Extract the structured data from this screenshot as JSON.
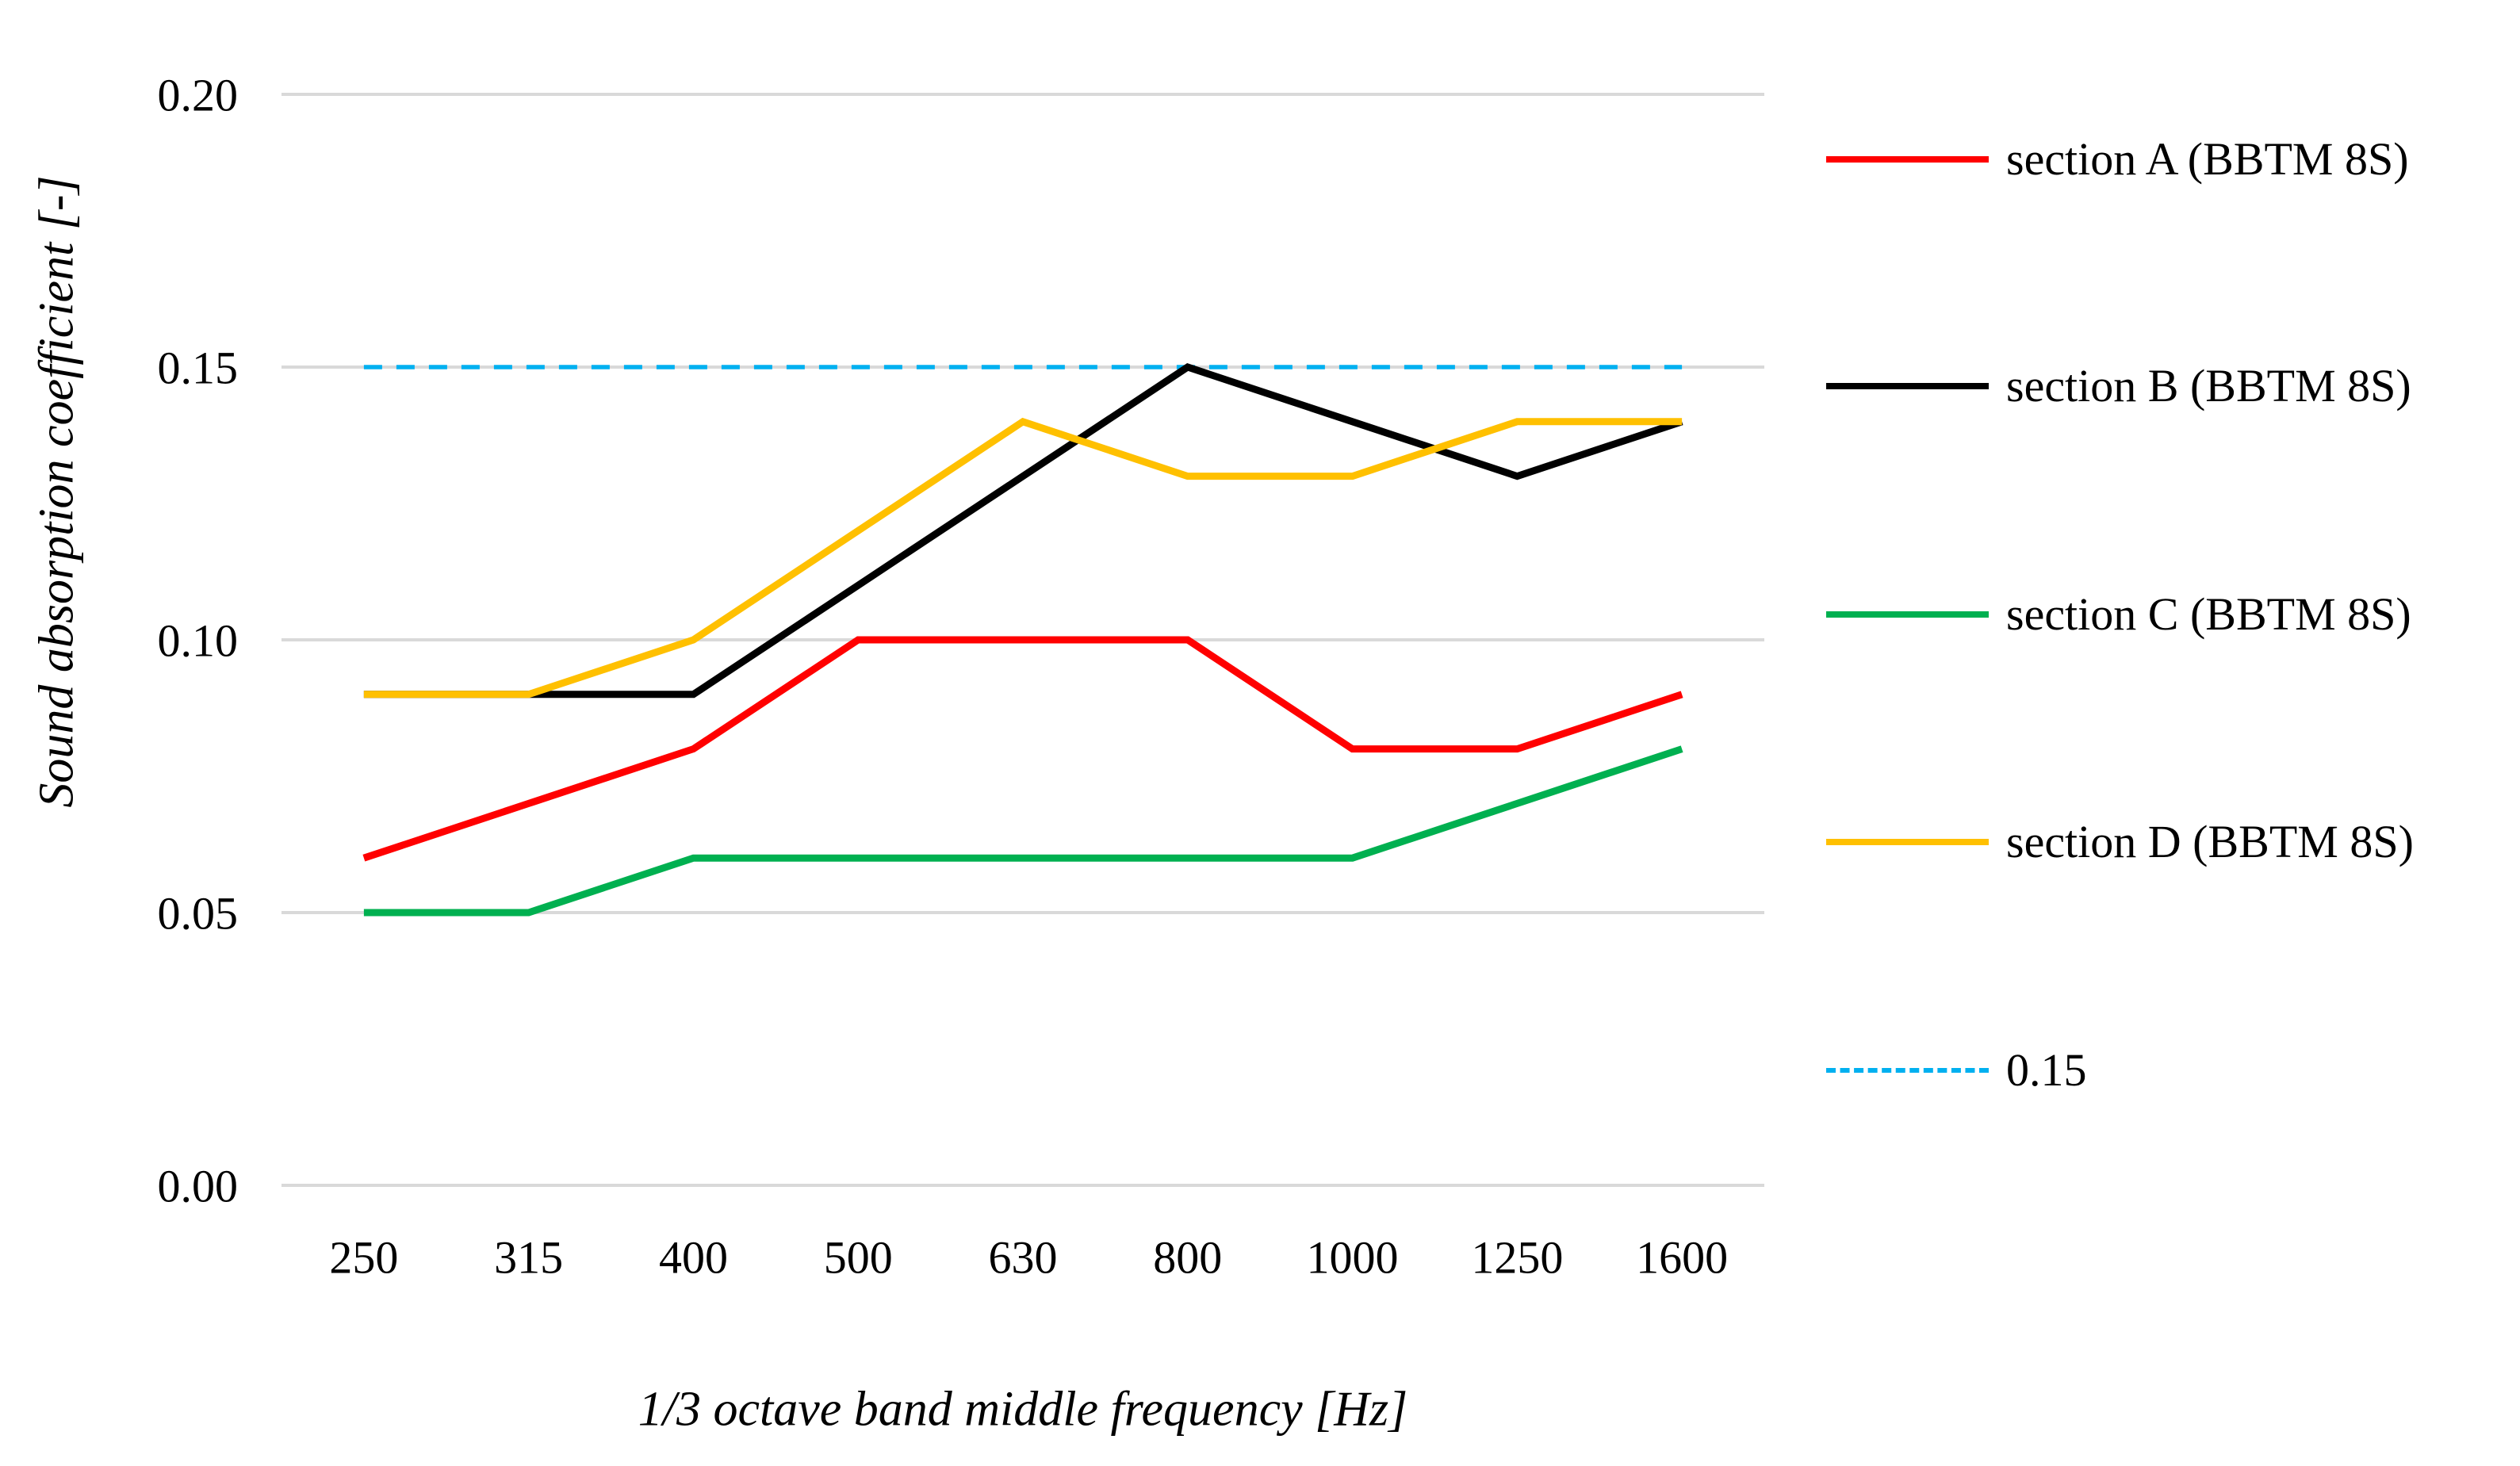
{
  "figure": {
    "background": "#FFFFFF"
  },
  "colors": {
    "gridline": "#D9D9D9",
    "text": "#000000"
  },
  "legend": {
    "items": [
      {
        "label": "section A (BBTM 8S)",
        "color": "#FF0000",
        "style": "solid"
      },
      {
        "label": "section B (BBTM 8S)",
        "color": "#000000",
        "style": "solid"
      },
      {
        "label": "section C (BBTM 8S)",
        "color": "#00B050",
        "style": "solid"
      },
      {
        "label": "section D (BBTM 8S)",
        "color": "#FFC000",
        "style": "solid"
      },
      {
        "label": "0.15",
        "color": "#00B0F0",
        "style": "dashed"
      }
    ]
  },
  "chart_data": {
    "type": "line",
    "title": "",
    "xlabel": "1/3 octave band middle frequency [Hz]",
    "ylabel": "Sound absorption coefficient [-]",
    "categories": [
      250,
      315,
      400,
      500,
      630,
      800,
      1000,
      1250,
      1600
    ],
    "x_tick_labels": [
      "250",
      "315",
      "400",
      "500",
      "630",
      "800",
      "1000",
      "1250",
      "1600"
    ],
    "series": [
      {
        "name": "section A (BBTM 8S)",
        "color": "#FF0000",
        "values": [
          0.06,
          0.07,
          0.08,
          0.1,
          0.1,
          0.1,
          0.08,
          0.08,
          0.09
        ]
      },
      {
        "name": "section B (BBTM 8S)",
        "color": "#000000",
        "values": [
          0.09,
          0.09,
          0.09,
          0.11,
          0.13,
          0.15,
          0.14,
          0.13,
          0.14
        ]
      },
      {
        "name": "section C (BBTM 8S)",
        "color": "#00B050",
        "values": [
          0.05,
          0.05,
          0.06,
          0.06,
          0.06,
          0.06,
          0.06,
          0.07,
          0.08
        ]
      },
      {
        "name": "section D (BBTM 8S)",
        "color": "#FFC000",
        "values": [
          0.09,
          0.09,
          0.1,
          0.12,
          0.14,
          0.13,
          0.13,
          0.14,
          0.14
        ]
      }
    ],
    "reference_line": {
      "label": "0.15",
      "value": 0.15,
      "color": "#00B0F0",
      "dash": true
    },
    "ylim": [
      0.0,
      0.2
    ],
    "y_ticks": [
      0.0,
      0.05,
      0.1,
      0.15,
      0.2
    ],
    "y_tick_labels": [
      "0.00",
      "0.05",
      "0.10",
      "0.15",
      "0.20"
    ],
    "grid": "horizontal",
    "legend_position": "right"
  }
}
